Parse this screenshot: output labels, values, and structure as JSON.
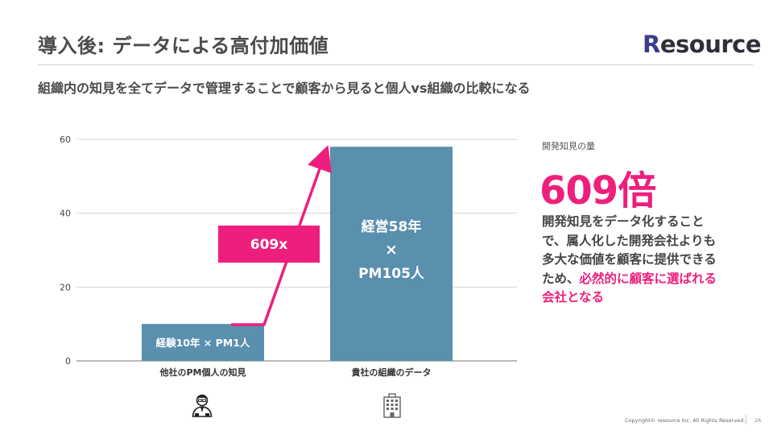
{
  "header": {
    "title": "導入後: データによる高付加価値",
    "logo_text": "esource",
    "logo_mark": "R"
  },
  "subtitle": "組織内の知見を全てデータで管理することで顧客から見ると個人vs組織の比較になる",
  "chart_data": {
    "type": "bar",
    "categories": [
      "他社のPM個人の知見",
      "貴社の組織のデータ"
    ],
    "values": [
      10,
      58
    ],
    "bar_labels": [
      "経験10年 × PM1人",
      "経営58年\n×\nPM105人"
    ],
    "ylim": [
      0,
      60
    ],
    "yticks": [
      0,
      20,
      40,
      60
    ],
    "grid": true,
    "bar_color": "#5a8fae",
    "annotation": {
      "text": "609x",
      "color": "#ee1f7c"
    },
    "title": "",
    "xlabel": "",
    "ylabel": ""
  },
  "side": {
    "label": "開発知見の量",
    "big": "609倍",
    "desc_1": "開発知見をデータ化すること",
    "desc_2": "で、属人化した開発会社よりも",
    "desc_3": "多大な価値を顧客に提供できる",
    "desc_4a": "ため、",
    "desc_4b": "必然的に顧客に選ばれる",
    "desc_5": "会社となる"
  },
  "icons": {
    "person": "person-icon",
    "building": "building-icon"
  },
  "footer": {
    "copyright": "Copyright© resource Inc. All Rights Reserved.",
    "page": "26"
  },
  "colors": {
    "accent": "#ee1f7c",
    "bar": "#5a8fae"
  }
}
